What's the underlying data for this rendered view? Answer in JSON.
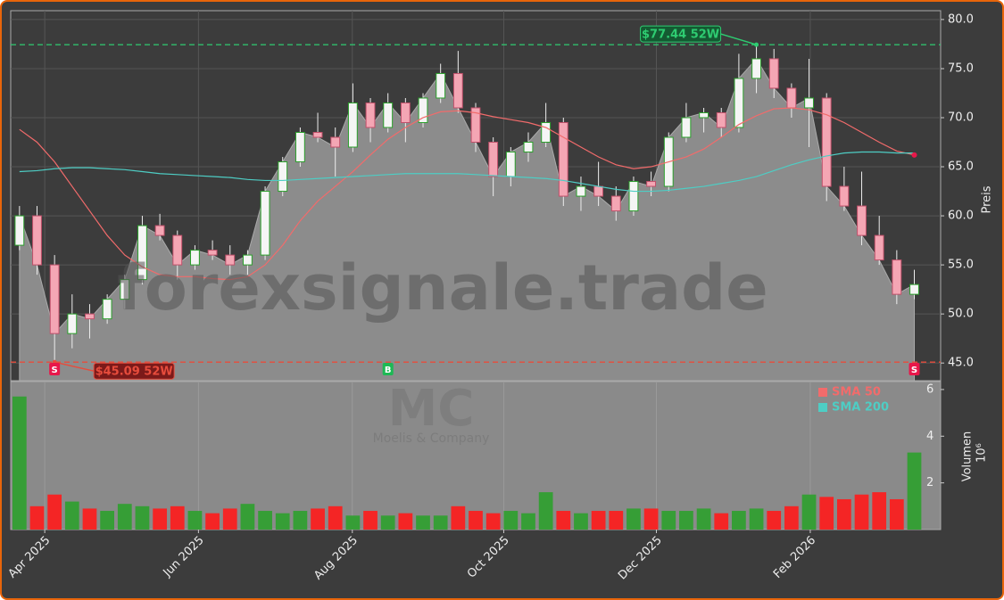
{
  "chart_data": {
    "type": "candlestick",
    "watermark": "forexsignale.trade",
    "ticker": "MC",
    "company": "Moelis & Company",
    "categories": [
      null,
      null,
      null,
      null,
      null,
      null,
      null,
      null,
      null,
      null,
      null,
      null,
      null,
      null,
      null,
      null,
      null,
      null,
      null,
      null,
      null,
      null,
      null,
      null,
      null,
      null,
      null,
      null,
      null,
      null,
      null,
      null,
      null,
      null,
      null,
      null,
      null,
      null,
      null,
      null,
      null,
      null,
      null,
      null,
      null,
      null,
      null,
      null,
      null,
      null,
      null,
      null
    ],
    "open": [
      57,
      60,
      55,
      48,
      50,
      49.5,
      51.5,
      53.5,
      59,
      58,
      55,
      56.5,
      56,
      55,
      56,
      62.5,
      65.5,
      68.5,
      68,
      67,
      71.5,
      69,
      71.5,
      69.5,
      72,
      74.5,
      71,
      67.5,
      64,
      66.5,
      67.5,
      69.5,
      62,
      63,
      62,
      60.5,
      63.5,
      63,
      68,
      70,
      70.5,
      69,
      74,
      76,
      73,
      71,
      72,
      63,
      61,
      58,
      55.5,
      52
    ],
    "high": [
      61,
      61,
      56,
      52,
      51,
      52,
      54,
      60,
      60.2,
      58.5,
      57,
      57.5,
      57,
      56.5,
      63,
      66,
      69,
      70.5,
      69,
      73.5,
      72,
      72.5,
      72,
      72.5,
      75.5,
      76.8,
      71.5,
      68,
      67,
      68.5,
      71.5,
      70,
      64,
      65.5,
      63,
      64,
      64.5,
      68.5,
      71.5,
      71,
      71,
      76.5,
      77.44,
      77,
      73.5,
      76,
      72.5,
      65,
      64.5,
      60,
      56.5,
      54.5
    ],
    "low": [
      56.5,
      54,
      45.09,
      46.5,
      47.5,
      49,
      50.5,
      53,
      57.5,
      53.5,
      54.5,
      55.5,
      54,
      54,
      55.5,
      62,
      65,
      67.5,
      64,
      66.5,
      67.5,
      68.5,
      67.5,
      69,
      71.5,
      70.5,
      66.5,
      62,
      63,
      65.5,
      67,
      61,
      60.5,
      61,
      59.5,
      60,
      62,
      62.5,
      67.5,
      68.5,
      68,
      68.5,
      72.5,
      72,
      70,
      67,
      61.5,
      60.5,
      57,
      55,
      51,
      51.5
    ],
    "close": [
      60,
      55,
      48,
      50,
      49.5,
      51.5,
      53.5,
      59,
      58,
      55,
      56.5,
      56,
      55,
      56,
      62.5,
      65.5,
      68.5,
      68,
      67,
      71.5,
      69,
      71.5,
      69.5,
      72,
      74.5,
      71,
      67.5,
      64,
      66.5,
      67.5,
      69.5,
      62,
      63,
      62,
      60.5,
      63.5,
      63,
      68,
      70,
      70.5,
      69,
      74,
      76,
      73,
      71,
      72,
      63,
      61,
      58,
      55.5,
      52,
      53
    ],
    "up_color": "#2ca02c",
    "down_color": "#ff1a1a",
    "area_color": "#8c8c8c",
    "xlim": [
      -0.5,
      52.5
    ],
    "xticks": [
      {
        "value": 1.44,
        "label": "Apr 2025"
      },
      {
        "value": 10.2,
        "label": "Jun 2025"
      },
      {
        "value": 18.97,
        "label": "Aug 2025"
      },
      {
        "value": 27.6,
        "label": "Oct 2025"
      },
      {
        "value": 36.3,
        "label": "Dec 2025"
      },
      {
        "value": 45.07,
        "label": "Feb 2026"
      }
    ],
    "ylim": [
      43.2,
      80.9
    ],
    "yticks": [
      {
        "value": 45,
        "label": "45.0"
      },
      {
        "value": 50,
        "label": "50.0"
      },
      {
        "value": 55,
        "label": "55.0"
      },
      {
        "value": 60,
        "label": "60.0"
      },
      {
        "value": 65,
        "label": "65.0"
      },
      {
        "value": 70,
        "label": "70.0"
      },
      {
        "value": 75,
        "label": "75.0"
      },
      {
        "value": 80,
        "label": "80.0"
      }
    ],
    "ylabel": "Preis",
    "grid": true,
    "series": [
      {
        "name": "SMA 50",
        "color": "#f26b6b",
        "values": [
          68.8,
          67.5,
          65.5,
          63,
          60.5,
          58,
          56,
          54.8,
          54,
          53.8,
          53.8,
          53.6,
          53.5,
          53.8,
          55,
          57,
          59.5,
          61.5,
          63,
          64.5,
          66.2,
          67.8,
          69,
          70,
          70.6,
          70.7,
          70.5,
          70.1,
          69.8,
          69.5,
          69,
          68,
          67,
          66,
          65.2,
          64.8,
          65,
          65.5,
          66,
          66.8,
          68,
          69.3,
          70.2,
          70.9,
          71,
          70.8,
          70.3,
          69.5,
          68.5,
          67.5,
          66.6,
          66.2
        ]
      },
      {
        "name": "SMA 200",
        "color": "#4ecdc4",
        "values": [
          64.5,
          64.6,
          64.8,
          64.9,
          64.9,
          64.8,
          64.7,
          64.5,
          64.3,
          64.2,
          64.1,
          64,
          63.9,
          63.7,
          63.6,
          63.6,
          63.7,
          63.8,
          63.9,
          64,
          64.1,
          64.2,
          64.3,
          64.3,
          64.3,
          64.3,
          64.2,
          64.1,
          64,
          63.9,
          63.8,
          63.6,
          63.3,
          63,
          62.7,
          62.5,
          62.5,
          62.6,
          62.8,
          63,
          63.3,
          63.6,
          64,
          64.6,
          65.2,
          65.7,
          66.1,
          66.4,
          66.5,
          66.5,
          66.4,
          66.4
        ]
      }
    ],
    "hlines": [
      {
        "value": 77.44,
        "label": "$77.44 52W",
        "x": 42,
        "color": "#2ecc71"
      },
      {
        "value": 45.09,
        "label": "$45.09 52W",
        "x": 2,
        "color": "#e74c3c"
      }
    ],
    "signals": [
      {
        "x": 2,
        "label": "S",
        "color": "#e8174a"
      },
      {
        "x": 21,
        "label": "B",
        "color": "#1db954"
      },
      {
        "x": 51,
        "label": "S",
        "color": "#e8174a"
      }
    ],
    "volume": {
      "values": [
        5.7,
        1.0,
        1.5,
        1.2,
        0.9,
        0.8,
        1.1,
        1.0,
        0.9,
        1.0,
        0.8,
        0.7,
        0.9,
        1.1,
        0.8,
        0.7,
        0.8,
        0.9,
        1.0,
        0.6,
        0.8,
        0.6,
        0.7,
        0.6,
        0.6,
        1.0,
        0.8,
        0.7,
        0.8,
        0.7,
        1.6,
        0.8,
        0.7,
        0.8,
        0.8,
        0.9,
        0.9,
        0.8,
        0.8,
        0.9,
        0.7,
        0.8,
        0.9,
        0.8,
        1.0,
        1.5,
        1.4,
        1.3,
        1.5,
        1.6,
        1.3,
        3.3
      ],
      "ylim": [
        0,
        6.34
      ],
      "yticks": [
        2,
        4,
        6
      ],
      "ylabel": "Volumen",
      "scale_label": "10⁶"
    }
  }
}
